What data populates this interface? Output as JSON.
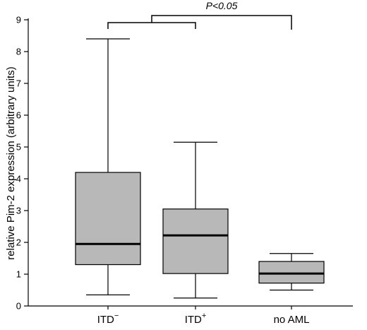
{
  "chart_data": {
    "type": "box",
    "title": "",
    "xlabel": "",
    "ylabel": "relative Pim-2 expression (arbitrary units)",
    "ylim": [
      0,
      9
    ],
    "yticks": [
      "0",
      "1",
      "2",
      "3",
      "4",
      "5",
      "6",
      "7",
      "8",
      "9"
    ],
    "categories": [
      {
        "base": "ITD",
        "sup": "−"
      },
      {
        "base": "ITD",
        "sup": "+"
      },
      {
        "base": "no AML",
        "sup": ""
      }
    ],
    "boxes": [
      {
        "min": 0.35,
        "q1": 1.3,
        "median": 1.95,
        "q3": 4.2,
        "max": 8.4
      },
      {
        "min": 0.25,
        "q1": 1.02,
        "median": 2.22,
        "q3": 3.05,
        "max": 5.15
      },
      {
        "min": 0.5,
        "q1": 0.72,
        "median": 1.02,
        "q3": 1.4,
        "max": 1.65
      }
    ],
    "significance": {
      "label": "P<0.05"
    },
    "colors": {
      "box_fill": "#b8b8b8",
      "stroke": "#000000"
    }
  }
}
